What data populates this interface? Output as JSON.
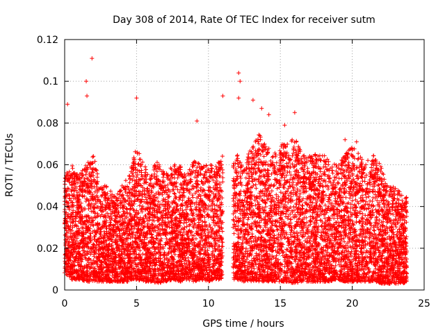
{
  "chart_data": {
    "type": "scatter",
    "title": "Day 308 of 2014, Rate Of TEC Index for receiver sutm",
    "xlabel": "GPS time / hours",
    "ylabel": "ROTI / TECUs",
    "xlim": [
      0,
      25
    ],
    "ylim": [
      0,
      0.12
    ],
    "xticks": [
      0,
      5,
      10,
      15,
      20,
      25
    ],
    "xtick_labels": [
      "0",
      "5",
      "10",
      "15",
      "20",
      "25"
    ],
    "yticks": [
      0,
      0.02,
      0.04,
      0.06,
      0.08,
      0.1,
      0.12
    ],
    "ytick_labels": [
      "0",
      "0.02",
      "0.04",
      "0.06",
      "0.08",
      "0.1",
      "0.12"
    ],
    "grid": true,
    "legend": "none",
    "marker": "plus",
    "color": "#ff0000",
    "notable_points": [
      {
        "x": 1.9,
        "y": 0.111
      },
      {
        "x": 1.5,
        "y": 0.1
      },
      {
        "x": 1.55,
        "y": 0.093
      },
      {
        "x": 0.2,
        "y": 0.089
      },
      {
        "x": 5.0,
        "y": 0.092
      },
      {
        "x": 9.2,
        "y": 0.081
      },
      {
        "x": 11.0,
        "y": 0.093
      },
      {
        "x": 12.1,
        "y": 0.104
      },
      {
        "x": 12.2,
        "y": 0.1
      },
      {
        "x": 12.1,
        "y": 0.092
      },
      {
        "x": 13.1,
        "y": 0.091
      },
      {
        "x": 13.7,
        "y": 0.087
      },
      {
        "x": 14.2,
        "y": 0.084
      },
      {
        "x": 16.0,
        "y": 0.085
      },
      {
        "x": 15.3,
        "y": 0.079
      },
      {
        "x": 19.5,
        "y": 0.072
      },
      {
        "x": 20.3,
        "y": 0.071
      }
    ],
    "envelope": {
      "x": [
        0,
        0.5,
        1.0,
        1.5,
        2.0,
        2.5,
        3.0,
        3.5,
        4.0,
        4.5,
        5.0,
        5.5,
        6.0,
        6.5,
        7.0,
        7.5,
        8.0,
        8.5,
        9.0,
        9.5,
        10.0,
        10.5,
        11.0,
        11.5,
        12.0,
        12.5,
        13.0,
        13.5,
        14.0,
        14.5,
        15.0,
        15.5,
        16.0,
        16.5,
        17.0,
        17.5,
        18.0,
        18.5,
        19.0,
        19.5,
        20.0,
        20.5,
        21.0,
        21.5,
        22.0,
        22.5,
        23.0,
        23.5,
        23.8
      ],
      "low": [
        0.008,
        0.005,
        0.005,
        0.004,
        0.004,
        0.004,
        0.004,
        0.004,
        0.004,
        0.004,
        0.005,
        0.004,
        0.004,
        0.003,
        0.004,
        0.005,
        0.004,
        0.005,
        0.004,
        0.005,
        0.004,
        0.005,
        0.005,
        null,
        0.005,
        0.004,
        0.004,
        0.004,
        0.004,
        0.004,
        0.004,
        0.004,
        0.003,
        0.004,
        0.004,
        0.004,
        0.004,
        0.004,
        0.005,
        0.004,
        0.004,
        0.004,
        0.004,
        0.004,
        0.003,
        0.003,
        0.003,
        0.003,
        0.004
      ],
      "high": [
        0.055,
        0.06,
        0.055,
        0.06,
        0.065,
        0.05,
        0.05,
        0.045,
        0.05,
        0.055,
        0.07,
        0.06,
        0.058,
        0.062,
        0.055,
        0.06,
        0.06,
        0.055,
        0.062,
        0.06,
        0.06,
        0.06,
        0.065,
        null,
        0.065,
        0.06,
        0.07,
        0.075,
        0.07,
        0.065,
        0.07,
        0.07,
        0.075,
        0.065,
        0.065,
        0.065,
        0.065,
        0.062,
        0.06,
        0.065,
        0.07,
        0.065,
        0.062,
        0.065,
        0.06,
        0.05,
        0.05,
        0.045,
        0.045
      ],
      "gap": [
        11.0,
        11.7
      ]
    }
  }
}
